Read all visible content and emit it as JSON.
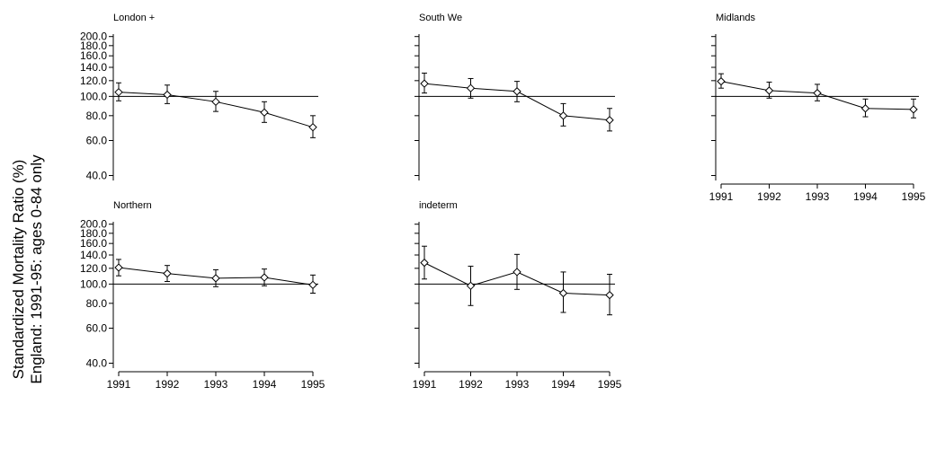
{
  "chart_data": {
    "type": "line",
    "ylabel_line1": "Standardized Mortality Ratio (%)",
    "ylabel_line2": "England: 1991-95: ages 0-84 only",
    "y_scale": "log",
    "ylim": [
      37,
      210
    ],
    "yticks": [
      "40.0",
      "60.0",
      "80.0",
      "100.0",
      "120.0",
      "140.0",
      "160.0",
      "180.0",
      "200.0"
    ],
    "reference_line": 100,
    "x": [
      "1991",
      "1992",
      "1993",
      "1994",
      "1995"
    ],
    "grid": false,
    "panels": [
      {
        "title": "London +",
        "values": [
          105,
          102,
          94,
          83,
          70
        ],
        "lower": [
          95,
          92,
          84,
          74,
          62
        ],
        "upper": [
          117,
          114,
          106,
          94,
          80
        ]
      },
      {
        "title": "South We",
        "values": [
          116,
          110,
          106,
          80,
          76
        ],
        "lower": [
          104,
          98,
          94,
          71,
          67
        ],
        "upper": [
          131,
          123,
          119,
          92,
          87
        ]
      },
      {
        "title": "Midlands",
        "values": [
          119,
          107,
          104,
          87,
          86
        ],
        "lower": [
          110,
          98,
          95,
          79,
          78
        ],
        "upper": [
          130,
          118,
          115,
          97,
          97
        ]
      },
      {
        "title": "Northern",
        "values": [
          121,
          113,
          107,
          108,
          99
        ],
        "lower": [
          110,
          103,
          97,
          98,
          90
        ],
        "upper": [
          133,
          124,
          118,
          119,
          111
        ]
      },
      {
        "title": "indeterm",
        "values": [
          128,
          98,
          115,
          90,
          88
        ],
        "lower": [
          106,
          78,
          94,
          72,
          70
        ],
        "upper": [
          155,
          123,
          141,
          115,
          112
        ]
      }
    ]
  }
}
